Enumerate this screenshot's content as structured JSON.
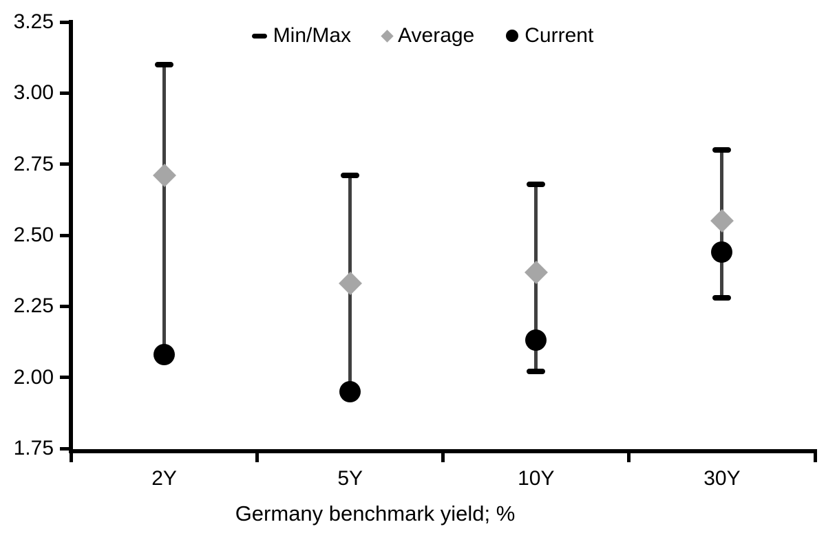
{
  "chart_data": {
    "type": "scatter",
    "title": "",
    "xlabel": "Germany benchmark yield; %",
    "ylabel": "",
    "categories": [
      "2Y",
      "5Y",
      "10Y",
      "30Y"
    ],
    "series": [
      {
        "name": "Min/Max",
        "marker": "dash",
        "color": "#000000",
        "min": [
          2.08,
          1.95,
          2.02,
          2.28
        ],
        "max": [
          3.1,
          2.71,
          2.68,
          2.8
        ]
      },
      {
        "name": "Average",
        "marker": "diamond",
        "color": "#a6a6a6",
        "values": [
          2.71,
          2.33,
          2.37,
          2.55
        ]
      },
      {
        "name": "Current",
        "marker": "circle",
        "color": "#000000",
        "values": [
          2.08,
          1.95,
          2.13,
          2.44
        ]
      }
    ],
    "ylim": [
      1.75,
      3.25
    ],
    "ytick_labels": [
      "1.75",
      "2.00",
      "2.25",
      "2.50",
      "2.75",
      "3.00",
      "3.25"
    ],
    "grid": false,
    "legend_position": "top",
    "axis_color": "#000000",
    "whisker_color": "#404040"
  },
  "legend": {
    "items": [
      {
        "label": "Min/Max"
      },
      {
        "label": "Average"
      },
      {
        "label": "Current"
      }
    ]
  }
}
